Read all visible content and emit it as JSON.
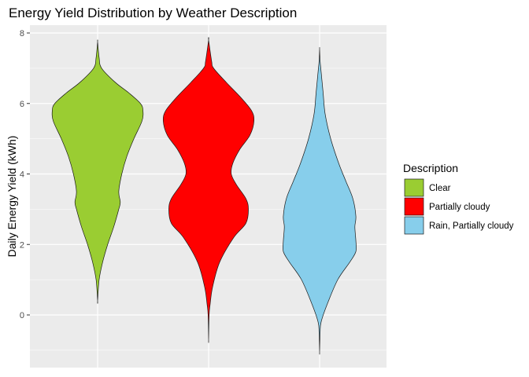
{
  "chart_data": {
    "type": "violin",
    "title": "Energy Yield Distribution by Weather Description",
    "xlabel": "",
    "ylabel": "Daily Energy Yield (kWh)",
    "ylim": [
      -1.5,
      8.2
    ],
    "yticks": [
      0,
      2,
      4,
      6,
      8
    ],
    "grid": true,
    "legend_title": "Description",
    "legend_position": "right",
    "series": [
      {
        "name": "Clear",
        "color": "#9ACD32",
        "min": 0.4,
        "max": 7.75,
        "profile": [
          [
            0.4,
            0.0
          ],
          [
            1.0,
            0.03
          ],
          [
            1.5,
            0.1
          ],
          [
            2.0,
            0.2
          ],
          [
            2.5,
            0.32
          ],
          [
            3.0,
            0.42
          ],
          [
            3.2,
            0.45
          ],
          [
            3.5,
            0.42
          ],
          [
            4.0,
            0.48
          ],
          [
            4.5,
            0.58
          ],
          [
            5.0,
            0.72
          ],
          [
            5.5,
            0.88
          ],
          [
            5.8,
            0.9
          ],
          [
            6.0,
            0.85
          ],
          [
            6.3,
            0.62
          ],
          [
            6.6,
            0.35
          ],
          [
            7.0,
            0.08
          ],
          [
            7.3,
            0.03
          ],
          [
            7.75,
            0.0
          ]
        ]
      },
      {
        "name": "Partially cloudy",
        "color": "#FF0000",
        "min": -0.7,
        "max": 7.8,
        "profile": [
          [
            -0.7,
            0.0
          ],
          [
            0.0,
            0.01
          ],
          [
            0.3,
            0.03
          ],
          [
            0.8,
            0.08
          ],
          [
            1.5,
            0.22
          ],
          [
            2.2,
            0.5
          ],
          [
            2.6,
            0.74
          ],
          [
            3.0,
            0.79
          ],
          [
            3.3,
            0.74
          ],
          [
            3.7,
            0.55
          ],
          [
            4.0,
            0.45
          ],
          [
            4.3,
            0.48
          ],
          [
            4.7,
            0.62
          ],
          [
            5.1,
            0.82
          ],
          [
            5.5,
            0.9
          ],
          [
            5.8,
            0.85
          ],
          [
            6.2,
            0.62
          ],
          [
            6.6,
            0.35
          ],
          [
            7.0,
            0.1
          ],
          [
            7.2,
            0.06
          ],
          [
            7.8,
            0.0
          ]
        ]
      },
      {
        "name": "Rain, Partially cloudy",
        "color": "#87CEEB",
        "min": -1.05,
        "max": 7.55,
        "profile": [
          [
            -1.05,
            0.0
          ],
          [
            -0.5,
            0.01
          ],
          [
            -0.2,
            0.03
          ],
          [
            0.3,
            0.15
          ],
          [
            1.0,
            0.36
          ],
          [
            1.5,
            0.6
          ],
          [
            1.8,
            0.72
          ],
          [
            2.1,
            0.72
          ],
          [
            2.5,
            0.7
          ],
          [
            2.8,
            0.72
          ],
          [
            3.3,
            0.66
          ],
          [
            3.8,
            0.52
          ],
          [
            4.3,
            0.38
          ],
          [
            5.0,
            0.22
          ],
          [
            5.7,
            0.11
          ],
          [
            6.3,
            0.07
          ],
          [
            6.9,
            0.03
          ],
          [
            7.2,
            0.01
          ],
          [
            7.55,
            0.0
          ]
        ]
      }
    ]
  }
}
